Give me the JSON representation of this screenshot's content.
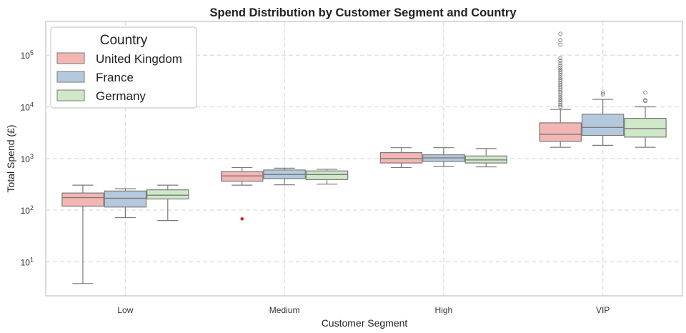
{
  "chart_data": {
    "type": "box",
    "title": "Spend Distribution by Customer Segment and Country",
    "xlabel": "Customer Segment",
    "ylabel": "Total Spend (£)",
    "yscale": "log",
    "ylim": [
      2.2,
      450000
    ],
    "y_ticks": [
      {
        "value": 10,
        "base": "10",
        "exp": "1"
      },
      {
        "value": 100,
        "base": "10",
        "exp": "2"
      },
      {
        "value": 1000,
        "base": "10",
        "exp": "3"
      },
      {
        "value": 10000,
        "base": "10",
        "exp": "4"
      },
      {
        "value": 100000,
        "base": "10",
        "exp": "5"
      }
    ],
    "categories": [
      "Low",
      "Medium",
      "High",
      "VIP"
    ],
    "grid": true,
    "legend": {
      "title": "Country",
      "placement": "top-left"
    },
    "series": [
      {
        "name": "United Kingdom",
        "color": "#f4b6b3",
        "boxes": [
          {
            "min": 3.8,
            "q1": 120,
            "median": 175,
            "q3": 215,
            "max": 305,
            "outliers": []
          },
          {
            "min": 305,
            "q1": 365,
            "median": 460,
            "q3": 560,
            "max": 670,
            "outliers": [
              68
            ]
          },
          {
            "min": 670,
            "q1": 820,
            "median": 1000,
            "q3": 1300,
            "max": 1620,
            "outliers": []
          },
          {
            "min": 1650,
            "q1": 2150,
            "median": 2950,
            "q3": 4900,
            "max": 8900,
            "outliers": [
              10000,
              10800,
              11700,
              12600,
              13800,
              15000,
              16500,
              18000,
              19500,
              21000,
              22500,
              24500,
              26500,
              28500,
              31000,
              33500,
              36500,
              40000,
              44000,
              48000,
              52000,
              57000,
              63000,
              70000,
              78000,
              88000,
              160000,
              195000,
              260000
            ]
          }
        ]
      },
      {
        "name": "France",
        "color": "#b4c9de",
        "boxes": [
          {
            "min": 72,
            "q1": 115,
            "median": 170,
            "q3": 235,
            "max": 260,
            "outliers": []
          },
          {
            "min": 310,
            "q1": 410,
            "median": 490,
            "q3": 600,
            "max": 650,
            "outliers": []
          },
          {
            "min": 710,
            "q1": 880,
            "median": 1030,
            "q3": 1180,
            "max": 1620,
            "outliers": []
          },
          {
            "min": 1800,
            "q1": 2800,
            "median": 4000,
            "q3": 7200,
            "max": 14000,
            "outliers": [
              17500,
              19000
            ]
          }
        ]
      },
      {
        "name": "Germany",
        "color": "#cfe8c8",
        "boxes": [
          {
            "min": 63,
            "q1": 165,
            "median": 195,
            "q3": 248,
            "max": 305,
            "outliers": []
          },
          {
            "min": 320,
            "q1": 390,
            "median": 490,
            "q3": 575,
            "max": 620,
            "outliers": []
          },
          {
            "min": 690,
            "q1": 820,
            "median": 940,
            "q3": 1120,
            "max": 1560,
            "outliers": []
          },
          {
            "min": 1650,
            "q1": 2600,
            "median": 3800,
            "q3": 6000,
            "max": 10000,
            "outliers": [
              13000,
              13500,
              19000
            ]
          }
        ]
      }
    ]
  }
}
